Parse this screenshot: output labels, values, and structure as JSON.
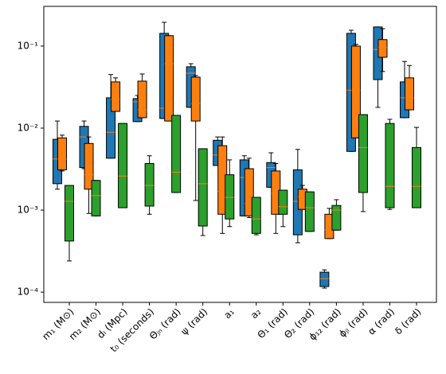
{
  "chart_data": {
    "type": "box",
    "log_y": true,
    "median_color": "#ff7f0e",
    "categories": [
      "m₁ (M⊙)",
      "m₂ (M⊙)",
      "dₗ (Mpc)",
      "t₀ (seconds)",
      "Θⱼₙ (rad)",
      "ψ (rad)",
      "a₁",
      "a₂",
      "Θ₁ (rad)",
      "Θ₂ (rad)",
      "ϕ₁₂ (rad)",
      "ϕⱼₗ (rad)",
      "α (rad)",
      "δ (rad)"
    ],
    "ylim": [
      7.5e-05,
      0.305
    ],
    "yticks": [
      {
        "value": 0.0001,
        "label": "10⁻⁴"
      },
      {
        "value": 0.001,
        "label": "10⁻³"
      },
      {
        "value": 0.01,
        "label": "10⁻²"
      },
      {
        "value": 0.1,
        "label": "10⁻¹"
      }
    ],
    "series": [
      {
        "color": "#1f77b4",
        "boxes": [
          {
            "low": 0.0018,
            "q1": 0.0021,
            "med": 0.0042,
            "q3": 0.0073,
            "high": 0.0122
          },
          {
            "low": 0.0032,
            "q1": 0.0033,
            "med": 0.0078,
            "q3": 0.0105,
            "high": 0.0122
          },
          {
            "low": 0.0043,
            "q1": 0.0043,
            "med": 0.0089,
            "q3": 0.0234,
            "high": 0.045
          },
          {
            "low": 0.012,
            "q1": 0.012,
            "med": 0.0209,
            "q3": 0.0229,
            "high": 0.025
          },
          {
            "low": 0.0131,
            "q1": 0.0131,
            "med": 0.0175,
            "q3": 0.143,
            "high": 0.195
          },
          {
            "low": 0.0179,
            "q1": 0.0179,
            "med": 0.0468,
            "q3": 0.056,
            "high": 0.061
          },
          {
            "low": 0.0035,
            "q1": 0.0035,
            "med": 0.0047,
            "q3": 0.0071,
            "high": 0.0078
          },
          {
            "low": 0.00085,
            "q1": 0.00085,
            "med": 0.0025,
            "q3": 0.0041,
            "high": 0.0046
          },
          {
            "low": 0.0019,
            "q1": 0.0019,
            "med": 0.0033,
            "q3": 0.0038,
            "high": 0.005
          },
          {
            "low": 0.0004,
            "q1": 0.0005,
            "med": 0.00128,
            "q3": 0.0031,
            "high": 0.0055
          },
          {
            "low": 0.000112,
            "q1": 0.000117,
            "med": 0.000146,
            "q3": 0.000175,
            "high": 0.000187
          },
          {
            "low": 0.0052,
            "q1": 0.0052,
            "med": 0.029,
            "q3": 0.143,
            "high": 0.156
          },
          {
            "low": 0.0179,
            "q1": 0.039,
            "med": 0.091,
            "q3": 0.171,
            "high": 0.171
          },
          {
            "low": 0.0134,
            "q1": 0.0134,
            "med": 0.0234,
            "q3": 0.0366,
            "high": 0.065
          }
        ]
      },
      {
        "color": "#ff7f0e",
        "boxes": [
          {
            "low": 0.003,
            "q1": 0.0031,
            "med": 0.0042,
            "q3": 0.0076,
            "high": 0.0082
          },
          {
            "low": 0.00091,
            "q1": 0.0018,
            "med": 0.0027,
            "q3": 0.0065,
            "high": 0.0078
          },
          {
            "low": 0.016,
            "q1": 0.016,
            "med": 0.0224,
            "q3": 0.0366,
            "high": 0.041
          },
          {
            "low": 0.0134,
            "q1": 0.0134,
            "med": 0.0167,
            "q3": 0.0374,
            "high": 0.0457
          },
          {
            "low": 0.0122,
            "q1": 0.0122,
            "med": 0.061,
            "q3": 0.134,
            "high": 0.134
          },
          {
            "low": 0.00131,
            "q1": 0.0122,
            "med": 0.02,
            "q3": 0.0418,
            "high": 0.0437
          },
          {
            "low": 0.00052,
            "q1": 0.00089,
            "med": 0.0017,
            "q3": 0.0061,
            "high": 0.0078
          },
          {
            "low": 0.00081,
            "q1": 0.00085,
            "med": 0.0012,
            "q3": 0.0032,
            "high": 0.0043
          },
          {
            "low": 0.00052,
            "q1": 0.00089,
            "med": 0.0016,
            "q3": 0.003,
            "high": 0.0037
          },
          {
            "low": 0.00102,
            "q1": 0.00102,
            "med": 0.00146,
            "q3": 0.0018,
            "high": 0.002
          },
          {
            "low": 0.00045,
            "q1": 0.00045,
            "med": 0.00057,
            "q3": 0.00089,
            "high": 0.00105
          },
          {
            "low": 0.0076,
            "q1": 0.0076,
            "med": 0.029,
            "q3": 0.1,
            "high": 0.105
          },
          {
            "low": 0.049,
            "q1": 0.073,
            "med": 0.096,
            "q3": 0.12,
            "high": 0.163
          },
          {
            "low": 0.0167,
            "q1": 0.0167,
            "med": 0.0234,
            "q3": 0.041,
            "high": 0.058
          }
        ]
      },
      {
        "color": "#2ca02c",
        "boxes": [
          {
            "low": 0.00024,
            "q1": 0.00042,
            "med": 0.00128,
            "q3": 0.002,
            "high": 0.002
          },
          {
            "low": 0.00085,
            "q1": 0.00085,
            "med": 0.0015,
            "q3": 0.0023,
            "high": 0.0023
          },
          {
            "low": 0.00107,
            "q1": 0.00107,
            "med": 0.0026,
            "q3": 0.0114,
            "high": 0.0114
          },
          {
            "low": 0.00089,
            "q1": 0.00112,
            "med": 0.002,
            "q3": 0.0037,
            "high": 0.0046
          },
          {
            "low": 0.00164,
            "q1": 0.00164,
            "med": 0.0029,
            "q3": 0.0143,
            "high": 0.0143
          },
          {
            "low": 0.00049,
            "q1": 0.00064,
            "med": 0.0021,
            "q3": 0.0056,
            "high": 0.0056
          },
          {
            "low": 0.00063,
            "q1": 0.00078,
            "med": 0.00143,
            "q3": 0.0027,
            "high": 0.0041
          },
          {
            "low": 0.0005,
            "q1": 0.00052,
            "med": 0.00078,
            "q3": 0.00143,
            "high": 0.00143
          },
          {
            "low": 0.00063,
            "q1": 0.00089,
            "med": 0.0011,
            "q3": 0.00175,
            "high": 0.00175
          },
          {
            "low": 0.00055,
            "q1": 0.00055,
            "med": 0.00107,
            "q3": 0.00167,
            "high": 0.00167
          },
          {
            "low": 0.00057,
            "q1": 0.00057,
            "med": 0.001,
            "q3": 0.00114,
            "high": 0.00134
          },
          {
            "low": 0.00096,
            "q1": 0.00164,
            "med": 0.0058,
            "q3": 0.0146,
            "high": 0.0146
          },
          {
            "low": 0.00102,
            "q1": 0.00107,
            "med": 0.00195,
            "q3": 0.0114,
            "high": 0.0128
          },
          {
            "low": 0.00107,
            "q1": 0.00107,
            "med": 0.00195,
            "q3": 0.0058,
            "high": 0.0102
          }
        ]
      }
    ]
  }
}
